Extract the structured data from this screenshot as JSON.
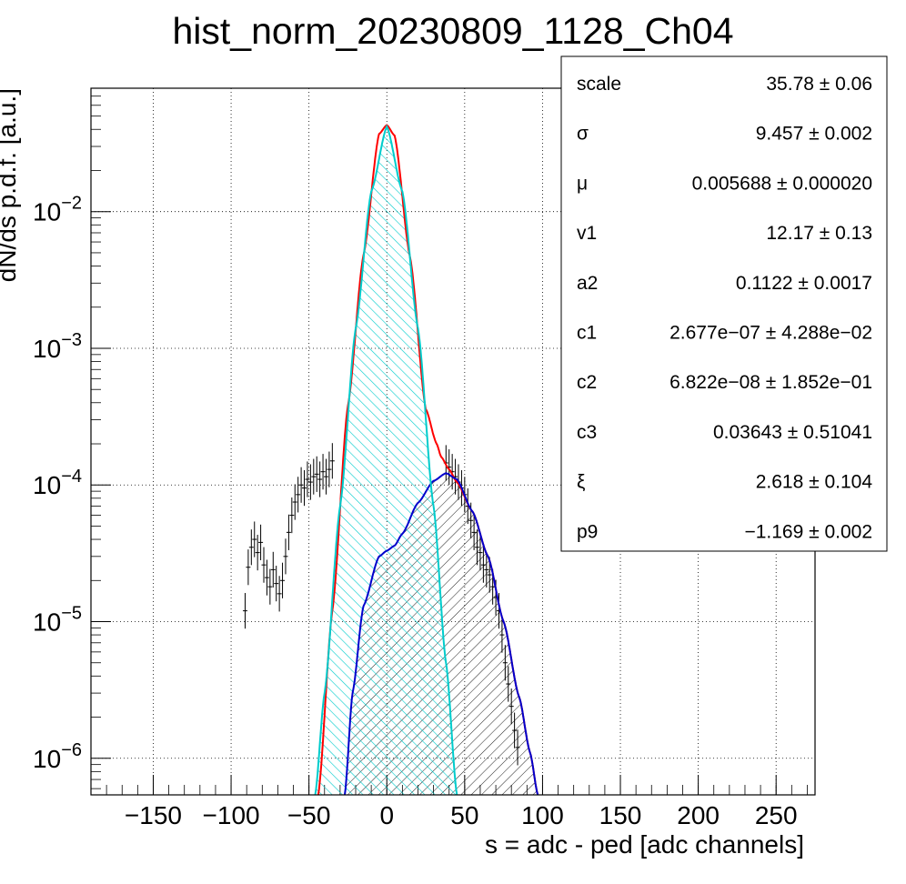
{
  "chart_data": {
    "type": "line",
    "title": "hist_norm_20230809_1128_Ch04",
    "xlabel": "s = adc - ped [adc channels]",
    "ylabel": "dN/ds p.d.f. [a.u.]",
    "xlim": [
      -190,
      275
    ],
    "ylim": [
      5.4e-07,
      0.08
    ],
    "yscale": "log",
    "grid": true,
    "x_ticks": [
      -150,
      -100,
      -50,
      0,
      50,
      100,
      150,
      200,
      250
    ],
    "x_tick_labels": [
      "−150",
      "−100",
      "−50",
      "0",
      "50",
      "100",
      "150",
      "200",
      "250"
    ],
    "y_ticks": [
      {
        "value": 1e-06,
        "base": "10",
        "exp": "−6"
      },
      {
        "value": 1e-05,
        "base": "10",
        "exp": "−5"
      },
      {
        "value": 0.0001,
        "base": "10",
        "exp": "−4"
      },
      {
        "value": 0.001,
        "base": "10",
        "exp": "−3"
      },
      {
        "value": 0.01,
        "base": "10",
        "exp": "−2"
      }
    ],
    "series": [
      {
        "role": "data histogram with error bars",
        "color": "#000000",
        "points": [
          [
            -91,
            1.2e-05
          ],
          [
            -89,
            2.5e-05
          ],
          [
            -87,
            3.5e-05
          ],
          [
            -85,
            4e-05
          ],
          [
            -83,
            3.2e-05
          ],
          [
            -81,
            3.8e-05
          ],
          [
            -79,
            2.6e-05
          ],
          [
            -77,
            2.1e-05
          ],
          [
            -75,
            1.8e-05
          ],
          [
            -73,
            2.4e-05
          ],
          [
            -71,
            1.9e-05
          ],
          [
            -69,
            1.6e-05
          ],
          [
            -67,
            2e-05
          ],
          [
            -65,
            3e-05
          ],
          [
            -63,
            4.5e-05
          ],
          [
            -61,
            6e-05
          ],
          [
            -59,
            7.5e-05
          ],
          [
            -57,
            8.5e-05
          ],
          [
            -55,
            0.0001
          ],
          [
            -53,
            9.5e-05
          ],
          [
            -51,
            0.00011
          ],
          [
            -49,
            0.000105
          ],
          [
            -47,
            0.000115
          ],
          [
            -45,
            0.00012
          ],
          [
            -43,
            0.00011
          ],
          [
            -41,
            0.000125
          ],
          [
            -39,
            0.000115
          ],
          [
            -37,
            0.00013
          ],
          [
            -35,
            0.00015
          ],
          [
            38,
            0.000145
          ],
          [
            40,
            0.000135
          ],
          [
            42,
            0.000125
          ],
          [
            44,
            0.000115
          ],
          [
            46,
            0.000105
          ],
          [
            48,
            9.5e-05
          ],
          [
            50,
            8.5e-05
          ],
          [
            52,
            7e-05
          ],
          [
            54,
            5.5e-05
          ],
          [
            56,
            4.5e-05
          ],
          [
            58,
            3.5e-05
          ],
          [
            60,
            3.2e-05
          ],
          [
            62,
            2.6e-05
          ],
          [
            64,
            2.4e-05
          ],
          [
            66,
            2.2e-05
          ],
          [
            68,
            1.8e-05
          ],
          [
            70,
            1.5e-05
          ],
          [
            72,
            1.2e-05
          ],
          [
            74,
            8e-06
          ],
          [
            76,
            5e-06
          ],
          [
            78,
            3.5e-06
          ],
          [
            80,
            2.4e-06
          ],
          [
            82,
            1.6e-06
          ],
          [
            84,
            1.2e-06
          ]
        ]
      },
      {
        "role": "total fit",
        "color": "#ff0000",
        "x": [
          -44,
          -35,
          -25,
          -15,
          -5,
          0,
          5,
          15,
          25,
          32,
          35,
          40,
          45,
          55,
          65,
          75,
          85,
          92,
          97
        ],
        "y": [
          5.4e-07,
          1.2e-05,
          0.00038,
          0.0048,
          0.037,
          0.043,
          0.036,
          0.0046,
          0.00036,
          0.0002,
          0.00016,
          0.00013,
          0.000105,
          6.4e-05,
          3e-05,
          1e-05,
          2.8e-06,
          1.1e-06,
          5.4e-07
        ]
      },
      {
        "role": "gaussian pedestal component (cyan, hatched)",
        "color": "#00cccc",
        "x": [
          -46,
          -40,
          -30,
          -20,
          -10,
          0,
          10,
          20,
          30,
          38,
          45
        ],
        "y": [
          5.4e-07,
          3e-06,
          7e-05,
          0.0014,
          0.014,
          0.042,
          0.014,
          0.0014,
          7e-05,
          5e-06,
          5.4e-07
        ]
      },
      {
        "role": "signal component (blue, hatched)",
        "color": "#0000cc",
        "x": [
          -27,
          -22,
          -15,
          -5,
          0,
          5,
          10,
          20,
          30,
          38,
          45,
          55,
          65,
          75,
          85,
          92,
          97
        ],
        "y": [
          5.4e-07,
          3e-06,
          1.3e-05,
          3e-05,
          3.3e-05,
          3.6e-05,
          4.4e-05,
          7.4e-05,
          0.000107,
          0.000122,
          0.00011,
          6.4e-05,
          3e-05,
          1e-05,
          2.8e-06,
          1.1e-06,
          5.4e-07
        ]
      }
    ]
  },
  "stats": [
    {
      "name": "scale",
      "value": "35.78 ± 0.06"
    },
    {
      "name": "σ",
      "value": "9.457 ± 0.002"
    },
    {
      "name": "μ",
      "value": "0.005688 ± 0.000020"
    },
    {
      "name": "v1",
      "value": "12.17 ± 0.13"
    },
    {
      "name": "a2",
      "value": "0.1122 ± 0.0017"
    },
    {
      "name": "c1",
      "value": "2.677e−07 ± 4.288e−02"
    },
    {
      "name": "c2",
      "value": "6.822e−08 ± 1.852e−01"
    },
    {
      "name": "c3",
      "value": "0.03643 ± 0.51041"
    },
    {
      "name": "ξ",
      "value": "2.618 ± 0.104"
    },
    {
      "name": "p9",
      "value": "−1.169 ± 0.002"
    }
  ]
}
